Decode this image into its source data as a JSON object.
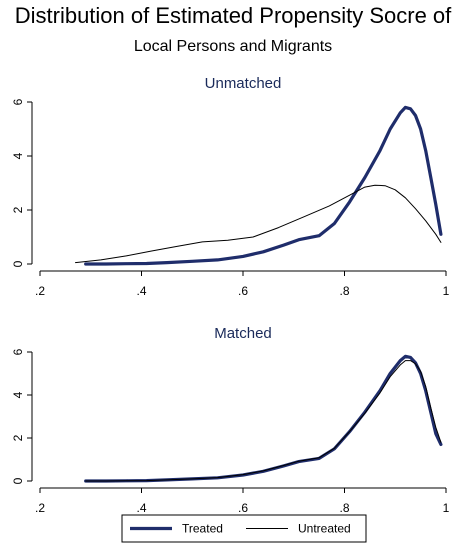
{
  "title": "Distribution of Estimated Propensity Socre of",
  "subtitle": "Local Persons and Migrants",
  "colors": {
    "treated": "#1f2d6b",
    "untreated": "#000000",
    "axis": "#000000"
  },
  "chart_data": [
    {
      "type": "line",
      "title": "Unmatched",
      "xlim": [
        0.2,
        1.0
      ],
      "ylim": [
        0,
        6
      ],
      "xticks": [
        ".2",
        ".4",
        ".6",
        ".8",
        "1"
      ],
      "yticks": [
        "0",
        "2",
        "4",
        "6"
      ],
      "grid": false,
      "series": [
        {
          "name": "Treated",
          "x": [
            0.29,
            0.33,
            0.37,
            0.41,
            0.45,
            0.5,
            0.55,
            0.6,
            0.64,
            0.68,
            0.71,
            0.75,
            0.78,
            0.81,
            0.84,
            0.87,
            0.89,
            0.91,
            0.92,
            0.93,
            0.94,
            0.95,
            0.96,
            0.97,
            0.98,
            0.99
          ],
          "y": [
            0.0,
            0.0,
            0.01,
            0.02,
            0.05,
            0.1,
            0.15,
            0.28,
            0.45,
            0.7,
            0.9,
            1.05,
            1.5,
            2.3,
            3.2,
            4.2,
            5.0,
            5.6,
            5.8,
            5.75,
            5.5,
            5.0,
            4.2,
            3.2,
            2.2,
            1.1
          ]
        },
        {
          "name": "Untreated",
          "x": [
            0.27,
            0.32,
            0.37,
            0.42,
            0.47,
            0.52,
            0.57,
            0.62,
            0.67,
            0.72,
            0.77,
            0.81,
            0.84,
            0.86,
            0.88,
            0.9,
            0.92,
            0.94,
            0.96,
            0.98,
            0.99
          ],
          "y": [
            0.05,
            0.15,
            0.3,
            0.48,
            0.65,
            0.82,
            0.88,
            1.0,
            1.35,
            1.75,
            2.15,
            2.55,
            2.85,
            2.92,
            2.9,
            2.75,
            2.45,
            2.05,
            1.6,
            1.1,
            0.8
          ]
        }
      ]
    },
    {
      "type": "line",
      "title": "Matched",
      "xlim": [
        0.2,
        1.0
      ],
      "ylim": [
        0,
        6
      ],
      "xticks": [
        ".2",
        ".4",
        ".6",
        ".8",
        "1"
      ],
      "yticks": [
        "0",
        "2",
        "4",
        "6"
      ],
      "grid": false,
      "series": [
        {
          "name": "Treated",
          "x": [
            0.29,
            0.33,
            0.37,
            0.41,
            0.45,
            0.5,
            0.55,
            0.6,
            0.64,
            0.68,
            0.71,
            0.75,
            0.78,
            0.81,
            0.84,
            0.87,
            0.89,
            0.91,
            0.92,
            0.93,
            0.94,
            0.95,
            0.96,
            0.97,
            0.98,
            0.99
          ],
          "y": [
            0.0,
            0.0,
            0.01,
            0.02,
            0.05,
            0.1,
            0.15,
            0.28,
            0.45,
            0.7,
            0.9,
            1.05,
            1.5,
            2.3,
            3.2,
            4.2,
            5.0,
            5.6,
            5.8,
            5.75,
            5.5,
            5.0,
            4.2,
            3.2,
            2.2,
            1.7
          ]
        },
        {
          "name": "Untreated",
          "x": [
            0.29,
            0.33,
            0.37,
            0.41,
            0.45,
            0.5,
            0.55,
            0.6,
            0.64,
            0.68,
            0.71,
            0.75,
            0.78,
            0.81,
            0.84,
            0.87,
            0.89,
            0.91,
            0.92,
            0.93,
            0.94,
            0.95,
            0.96,
            0.97,
            0.98,
            0.99
          ],
          "y": [
            0.0,
            0.0,
            0.01,
            0.02,
            0.05,
            0.1,
            0.16,
            0.3,
            0.47,
            0.72,
            0.92,
            1.08,
            1.52,
            2.3,
            3.15,
            4.1,
            4.85,
            5.4,
            5.6,
            5.6,
            5.45,
            5.1,
            4.4,
            3.4,
            2.5,
            1.8
          ]
        }
      ]
    }
  ],
  "legend": {
    "placement": "bottom",
    "items": [
      "Treated",
      "Untreated"
    ]
  }
}
